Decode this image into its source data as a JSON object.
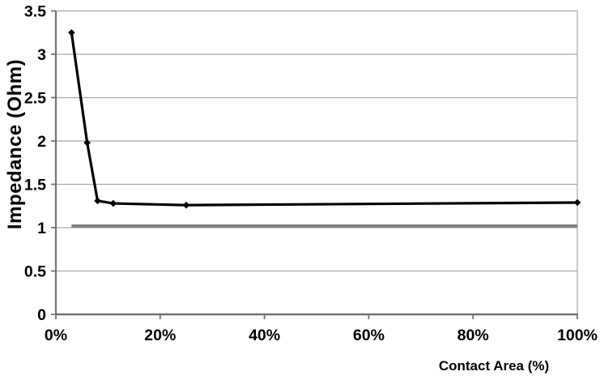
{
  "page": {
    "background": "#ffffff"
  },
  "chart_data": {
    "type": "line",
    "title": "",
    "xlabel": "Contact Area (%)",
    "ylabel": "Impedance (Ohm)",
    "xlim": [
      0,
      100
    ],
    "ylim": [
      0,
      3.5
    ],
    "x_ticks": [
      0,
      20,
      40,
      60,
      80,
      100
    ],
    "x_tick_labels": [
      "0%",
      "20%",
      "40%",
      "60%",
      "80%",
      "100%"
    ],
    "y_ticks": [
      0,
      0.5,
      1,
      1.5,
      2,
      2.5,
      3,
      3.5
    ],
    "y_tick_labels": [
      "0",
      "0.5",
      "1",
      "1.5",
      "2",
      "2.5",
      "3",
      "3.5"
    ],
    "grid": {
      "horizontal": true,
      "right_border": true
    },
    "legend": "none",
    "colors": {
      "gridline": "#a8a8a8",
      "axis": "#737373",
      "text": "#000000"
    },
    "series": [
      {
        "name": "impedance-vs-contact-area",
        "color": "#000000",
        "marker": "diamond",
        "marker_size": 4.3,
        "stroke_width": 3.2,
        "points": [
          [
            3,
            3.25
          ],
          [
            6,
            1.98
          ],
          [
            8,
            1.31
          ],
          [
            11,
            1.28
          ],
          [
            25,
            1.26
          ],
          [
            100,
            1.29
          ]
        ]
      },
      {
        "name": "reference-impedance-baseline",
        "color": "#7f7f7f",
        "marker": "none",
        "marker_size": 0,
        "stroke_width": 3.8,
        "points": [
          [
            3,
            1.02
          ],
          [
            100,
            1.02
          ]
        ]
      }
    ]
  }
}
